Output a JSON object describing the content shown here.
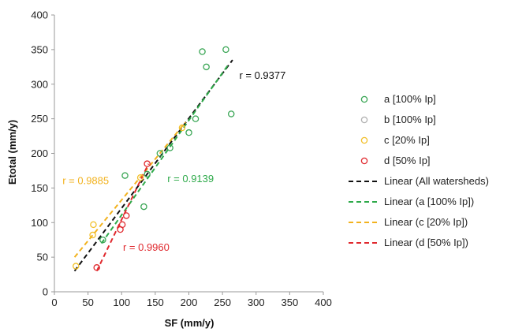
{
  "chart_data": {
    "type": "scatter",
    "title": "",
    "xlabel": "SF (mm/y)",
    "ylabel": "Etotal (mm/y)",
    "xlim": [
      0,
      400
    ],
    "ylim": [
      0,
      400
    ],
    "xticks": [
      0,
      50,
      100,
      150,
      200,
      250,
      300,
      350,
      400
    ],
    "yticks": [
      0,
      50,
      100,
      150,
      200,
      250,
      300,
      350,
      400
    ],
    "grid": false,
    "legend_position": "right",
    "series": [
      {
        "name": "a [100% Ip]",
        "color": "#3aa655",
        "marker": "circle",
        "points": [
          [
            72,
            75
          ],
          [
            105,
            168
          ],
          [
            133,
            123
          ],
          [
            138,
            170
          ],
          [
            157,
            200
          ],
          [
            172,
            208
          ],
          [
            200,
            230
          ],
          [
            210,
            250
          ],
          [
            220,
            347
          ],
          [
            226,
            325
          ],
          [
            255,
            350
          ],
          [
            263,
            257
          ]
        ]
      },
      {
        "name": "b [100% Ip]",
        "color": "#b0b0b0",
        "marker": "circle",
        "points": []
      },
      {
        "name": "c [20% Ip]",
        "color": "#f2c02a",
        "marker": "circle",
        "points": [
          [
            32,
            37
          ],
          [
            57,
            82
          ],
          [
            58,
            97
          ],
          [
            128,
            165
          ],
          [
            190,
            237
          ]
        ]
      },
      {
        "name": "d [50% Ip]",
        "color": "#e0292e",
        "marker": "circle",
        "points": [
          [
            63,
            35
          ],
          [
            98,
            90
          ],
          [
            101,
            97
          ],
          [
            107,
            110
          ],
          [
            138,
            185
          ]
        ]
      }
    ],
    "trendlines": [
      {
        "name": "Linear (All watersheds)",
        "color": "#111111",
        "x": [
          30,
          265
        ],
        "y": [
          30,
          335
        ]
      },
      {
        "name": "Linear (a [100% Ip])",
        "color": "#2eaa4a",
        "x": [
          70,
          260
        ],
        "y": [
          70,
          330
        ]
      },
      {
        "name": "Linear (c [20% Ip])",
        "color": "#f2b21e",
        "x": [
          30,
          195
        ],
        "y": [
          50,
          245
        ]
      },
      {
        "name": "Linear (d [50% Ip])",
        "color": "#e0292e",
        "x": [
          63,
          140
        ],
        "y": [
          30,
          185
        ]
      }
    ],
    "annotations": [
      {
        "text": "r = 0.9377",
        "color": "#111111",
        "x": 275,
        "y": 312
      },
      {
        "text": "r = 0.9139",
        "color": "#2eaa4a",
        "x": 168,
        "y": 163
      },
      {
        "text": "r = 0.9885",
        "color": "#f2b21e",
        "x": 12,
        "y": 160
      },
      {
        "text": "r = 0.9960",
        "color": "#e0292e",
        "x": 102,
        "y": 64
      }
    ]
  }
}
